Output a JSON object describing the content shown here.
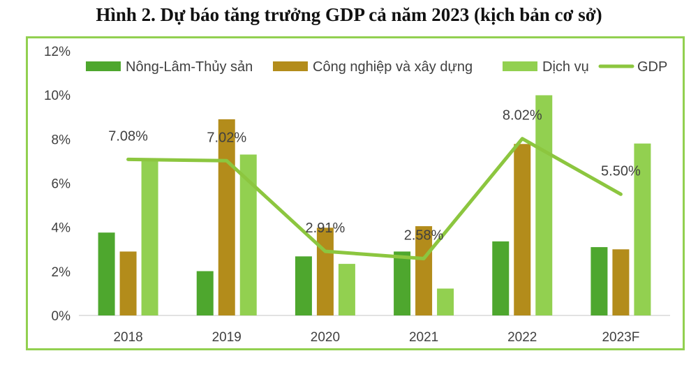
{
  "title": "Hình 2. Dự báo tăng trưởng GDP cả năm 2023 (kịch bản cơ sở)",
  "chart_data": {
    "type": "bar",
    "categories": [
      "2018",
      "2019",
      "2020",
      "2021",
      "2022",
      "2023F"
    ],
    "series": [
      {
        "name": "Nông-Lâm-Thủy sản",
        "kind": "bar",
        "color": "#4ea72e",
        "values": [
          3.76,
          2.01,
          2.68,
          2.9,
          3.36,
          3.1
        ]
      },
      {
        "name": "Công nghiệp và xây dựng",
        "kind": "bar",
        "color": "#b38c1b",
        "values": [
          2.9,
          8.9,
          3.98,
          4.05,
          7.78,
          3.0
        ]
      },
      {
        "name": "Dịch vụ",
        "kind": "bar",
        "color": "#92d050",
        "values": [
          7.03,
          7.3,
          2.34,
          1.22,
          9.99,
          7.8
        ]
      },
      {
        "name": "GDP",
        "kind": "line",
        "color": "#8cc63f",
        "values": [
          7.08,
          7.02,
          2.91,
          2.58,
          8.02,
          5.5
        ],
        "labels": [
          "7.08%",
          "7.02%",
          "2.91%",
          "2.58%",
          "8.02%",
          "5.50%"
        ]
      }
    ],
    "y_ticks": [
      "0%",
      "2%",
      "4%",
      "6%",
      "8%",
      "10%",
      "12%"
    ],
    "ylim": [
      0,
      12
    ],
    "grid": false,
    "legend_position": "top"
  }
}
